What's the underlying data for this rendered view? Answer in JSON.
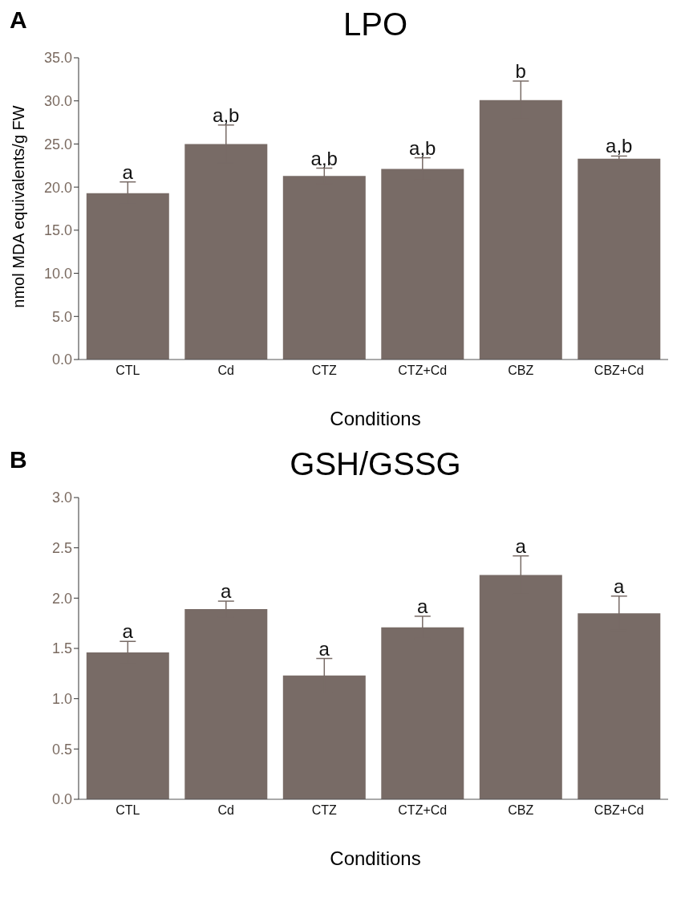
{
  "chart_data": [
    {
      "type": "bar",
      "title": "LPO",
      "xlabel": "Conditions",
      "ylabel": "nmol MDA equivalents/g FW",
      "categories": [
        "CTL",
        "Cd",
        "CTZ",
        "CTZ+Cd",
        "CBZ",
        "CBZ+Cd"
      ],
      "values": [
        19.3,
        25.0,
        21.3,
        22.1,
        30.1,
        23.3
      ],
      "errors": [
        1.3,
        2.2,
        0.9,
        1.3,
        2.2,
        0.3
      ],
      "color": "#786b66",
      "ylim": [
        0,
        35
      ],
      "yticks": [
        {
          "value": 0,
          "label": "0.0"
        },
        {
          "value": 5,
          "label": "5.0"
        },
        {
          "value": 10,
          "label": "10.0"
        },
        {
          "value": 15,
          "label": "15.0"
        },
        {
          "value": 20,
          "label": "20.0"
        },
        {
          "value": 25,
          "label": "25.0"
        },
        {
          "value": 30,
          "label": "30.0"
        },
        {
          "value": 35,
          "label": "35.0"
        }
      ],
      "grid": false,
      "legend": false,
      "annotations": [
        "A",
        {
          "text": "a",
          "x": "CTL",
          "y": 20.6
        },
        {
          "text": "a,b",
          "x": "Cd",
          "y": 27.2
        },
        {
          "text": "a,b",
          "x": "CTZ",
          "y": 22.2
        },
        {
          "text": "a,b",
          "x": "CTZ+Cd",
          "y": 23.4
        },
        {
          "text": "b",
          "x": "CBZ",
          "y": 32.3
        },
        {
          "text": "a,b",
          "x": "CBZ+Cd",
          "y": 23.6
        }
      ]
    },
    {
      "type": "bar",
      "title": "GSH/GSSG",
      "xlabel": "Conditions",
      "categories": [
        "CTL",
        "Cd",
        "CTZ",
        "CTZ+Cd",
        "CBZ",
        "CBZ+Cd"
      ],
      "values": [
        1.46,
        1.89,
        1.23,
        1.71,
        2.23,
        1.85
      ],
      "errors": [
        0.11,
        0.08,
        0.17,
        0.11,
        0.19,
        0.17
      ],
      "color": "#786b66",
      "ylim": [
        0,
        3
      ],
      "yticks": [
        {
          "value": 0,
          "label": "0.0"
        },
        {
          "value": 0.5,
          "label": "0.5"
        },
        {
          "value": 1,
          "label": "1.0"
        },
        {
          "value": 1.5,
          "label": "1.5"
        },
        {
          "value": 2,
          "label": "2.0"
        },
        {
          "value": 2.5,
          "label": "2.5"
        },
        {
          "value": 3,
          "label": "3.0"
        }
      ],
      "grid": false,
      "legend": false,
      "annotations": [
        "B",
        {
          "text": "a",
          "x": "CTL",
          "y": 1.57
        },
        {
          "text": "a",
          "x": "Cd",
          "y": 1.97
        },
        {
          "text": "a",
          "x": "CTZ",
          "y": 1.4
        },
        {
          "text": "a",
          "x": "CTZ+Cd",
          "y": 1.82
        },
        {
          "text": "a",
          "x": "CBZ",
          "y": 2.42
        },
        {
          "text": "a",
          "x": "CBZ+Cd",
          "y": 2.02
        }
      ]
    }
  ]
}
